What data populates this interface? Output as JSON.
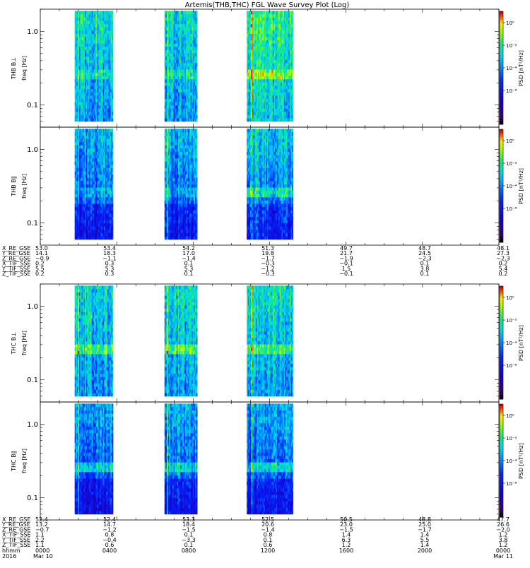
{
  "chart_data": {
    "type": "heatmap",
    "title": "Artemis(THB,THC) FGL Wave Survey Plot (Log)",
    "x_axis": {
      "tick_labels": [
        {
          "time": "0000",
          "date": "2016 Mar 10"
        },
        {
          "time": "0400",
          "date": ""
        },
        {
          "time": "0800",
          "date": ""
        },
        {
          "time": "1200",
          "date": ""
        },
        {
          "time": "1600",
          "date": ""
        },
        {
          "time": "2000",
          "date": ""
        },
        {
          "time": "0000",
          "date": "Mar 11"
        }
      ],
      "range_hours": [
        0,
        24
      ],
      "row_label_time": "hhmm",
      "row_label_date": "2016"
    },
    "panels": [
      {
        "name": "THB B⊥",
        "ylabel": "freq [Hz]",
        "colorbar_label": "PSD [nT²/Hz]",
        "variant": 0
      },
      {
        "name": "THB B∥",
        "ylabel": "freq [Hz]",
        "colorbar_label": "PSD [nT²/Hz]",
        "variant": 1
      },
      {
        "name": "THC B⊥",
        "ylabel": "freq [Hz]",
        "colorbar_label": "PSD [nT²/Hz]",
        "variant": 2
      },
      {
        "name": "THC B∥",
        "ylabel": "freq [Hz]",
        "colorbar_label": "PSD [nT²/Hz]",
        "variant": 3
      }
    ],
    "y_axis": {
      "scale": "log",
      "range": [
        0.05,
        2.0
      ],
      "tick_labels": [
        "1.0",
        "0.1"
      ],
      "tick_values": [
        1.0,
        0.1
      ]
    },
    "colorbar": {
      "scale": "log",
      "range": [
        1e-09,
        10.0
      ],
      "ticks": [
        {
          "value": 1,
          "label": "10⁰"
        },
        {
          "value": 0.01,
          "label": "10⁻²"
        },
        {
          "value": 0.0001,
          "label": "10⁻⁴"
        },
        {
          "value": 1e-06,
          "label": "10⁻⁶"
        }
      ],
      "colormap": "rainbow"
    },
    "data_intervals_hours": [
      [
        1.8,
        3.8
      ],
      [
        6.5,
        8.2
      ],
      [
        10.8,
        13.2
      ]
    ],
    "freq_range_hz": [
      0.06,
      1.9
    ],
    "ephemeris_blocks": [
      {
        "rows": [
          {
            "label": "X_RE_GSE",
            "values": [
              "53.0",
              "53.4",
              "54.2",
              "51.3",
              "49.7",
              "48.7",
              "48.1"
            ]
          },
          {
            "label": "Y_RE_GSE",
            "values": [
              "14.1",
              "18.3",
              "17.0",
              "19.8",
              "21.7",
              "24.5",
              "27.3"
            ]
          },
          {
            "label": "Z_RE_GSE",
            "values": [
              "−0.9",
              "−1.1",
              "−1.4",
              "−1.7",
              "−1.9",
              "−2.3",
              "−2.3"
            ]
          },
          {
            "label": "X_TIF_SSE",
            "values": [
              "0.2",
              "0.3",
              "0.1",
              "−0.3",
              "−0.1",
              "0.1",
              "0.2"
            ]
          },
          {
            "label": "Y_TIF_SSE",
            "values": [
              "5.5",
              "5.3",
              "5.3",
              "−1.2",
              "1.5",
              "3.8",
              "5.4"
            ]
          },
          {
            "label": "Z_TIF_SSE",
            "values": [
              "0.2",
              "0.3",
              "0.1",
              "−0.3",
              "−0.1",
              "0.1",
              "0.2"
            ]
          }
        ]
      },
      {
        "rows": [
          {
            "label": "X_RE_GSE",
            "values": [
              "52.4",
              "52.4",
              "53.3",
              "52.5",
              "50.5",
              "48.8",
              "47.7"
            ]
          },
          {
            "label": "Y_RE_GSE",
            "values": [
              "13.2",
              "14.7",
              "18.4",
              "20.6",
              "23.0",
              "25.0",
              "26.6"
            ]
          },
          {
            "label": "Z_RE_GSE",
            "values": [
              "−0.7",
              "−1.2",
              "−1.5",
              "−1.4",
              "−1.5",
              "−1.7",
              "−2.0"
            ]
          },
          {
            "label": "X_TIF_SSE",
            "values": [
              "1.1",
              "0.8",
              "0.1",
              "0.8",
              "1.4",
              "1.4",
              "1.2"
            ]
          },
          {
            "label": "Y_TIF_SSE",
            "values": [
              "2.2",
              "−0.4",
              "−3.3",
              "0.1",
              "6.3",
              "5.5",
              "3.8"
            ]
          },
          {
            "label": "Z_TIF_SSE",
            "values": [
              "1.1",
              "0.6",
              "0.1",
              "0.6",
              "1.2",
              "1.4",
              "1.2"
            ]
          }
        ]
      }
    ]
  }
}
